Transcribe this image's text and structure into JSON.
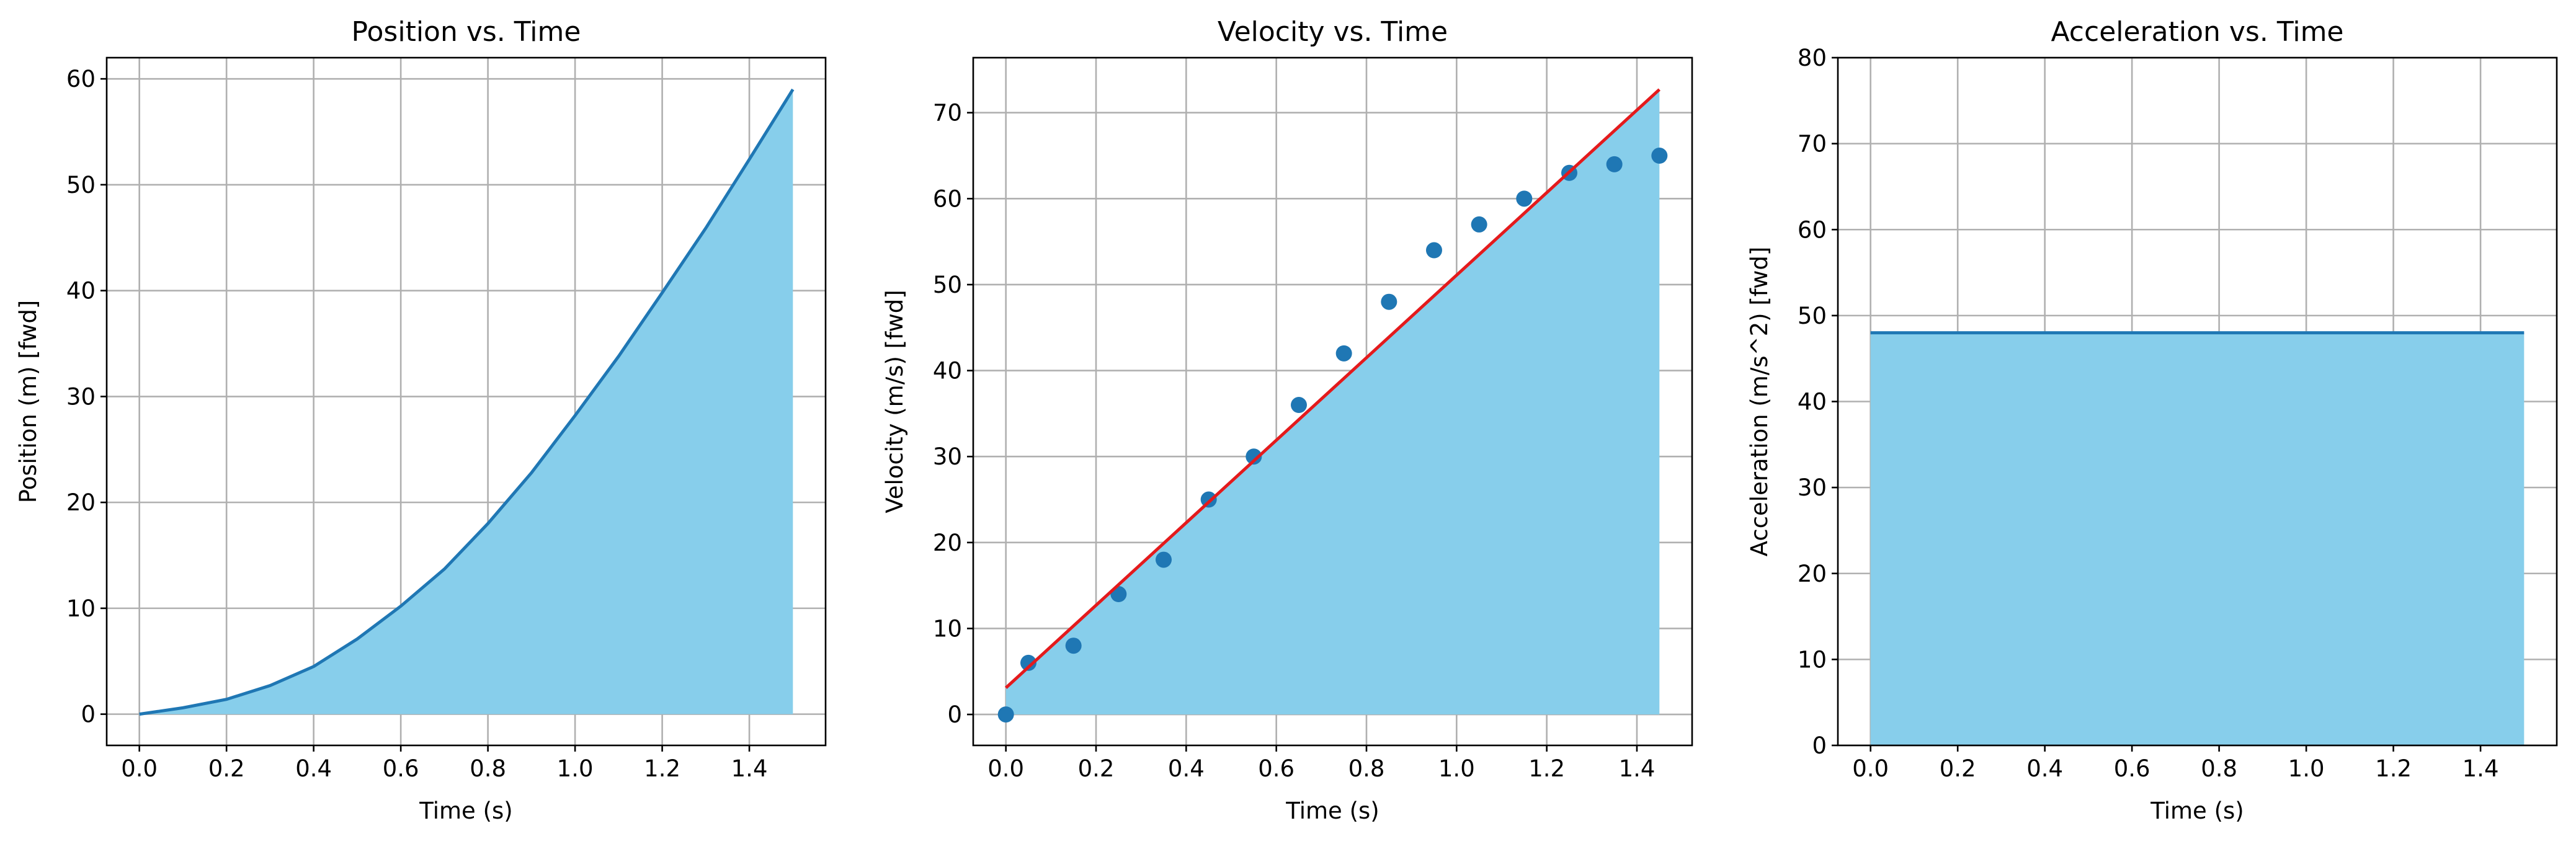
{
  "colors": {
    "line": "#1f77b4",
    "fill": "#87ceeb",
    "fit": "#e41a1c",
    "grid": "#b0b0b0"
  },
  "chart_data": [
    {
      "type": "area",
      "title": "Position vs. Time",
      "xlabel": "Time (s)",
      "ylabel": "Position (m) [fwd]",
      "xlim": [
        -0.075,
        1.575
      ],
      "ylim": [
        -2.95,
        62.0
      ],
      "xticks": [
        0.0,
        0.2,
        0.4,
        0.6,
        0.8,
        1.0,
        1.2,
        1.4
      ],
      "xtick_labels": [
        "0.0",
        "0.2",
        "0.4",
        "0.6",
        "0.8",
        "1.0",
        "1.2",
        "1.4"
      ],
      "yticks": [
        0,
        10,
        20,
        30,
        40,
        50,
        60
      ],
      "ytick_labels": [
        "0",
        "10",
        "20",
        "30",
        "40",
        "50",
        "60"
      ],
      "grid": true,
      "series": [
        {
          "style": "line-fill",
          "x": [
            0.0,
            0.1,
            0.2,
            0.3,
            0.4,
            0.5,
            0.6,
            0.7,
            0.8,
            0.9,
            1.0,
            1.1,
            1.2,
            1.3,
            1.4,
            1.5
          ],
          "y": [
            0.0,
            0.6,
            1.4,
            2.7,
            4.5,
            7.1,
            10.2,
            13.7,
            18.0,
            22.8,
            28.2,
            33.8,
            39.8,
            45.9,
            52.4,
            59.0
          ]
        }
      ]
    },
    {
      "type": "scatter",
      "title": "Velocity vs. Time",
      "xlabel": "Time (s)",
      "ylabel": "Velocity (m/s) [fwd]",
      "xlim": [
        -0.0725,
        1.5225
      ],
      "ylim": [
        -3.6,
        76.4
      ],
      "xticks": [
        0.0,
        0.2,
        0.4,
        0.6,
        0.8,
        1.0,
        1.2,
        1.4
      ],
      "xtick_labels": [
        "0.0",
        "0.2",
        "0.4",
        "0.6",
        "0.8",
        "1.0",
        "1.2",
        "1.4"
      ],
      "yticks": [
        0,
        10,
        20,
        30,
        40,
        50,
        60,
        70
      ],
      "ytick_labels": [
        "0",
        "10",
        "20",
        "30",
        "40",
        "50",
        "60",
        "70"
      ],
      "grid": true,
      "series": [
        {
          "style": "fill",
          "x": [
            0.0,
            1.45
          ],
          "y": [
            3.1,
            72.7
          ]
        },
        {
          "style": "points",
          "x": [
            0.0,
            0.05,
            0.15,
            0.25,
            0.35,
            0.45,
            0.55,
            0.65,
            0.75,
            0.85,
            0.95,
            1.05,
            1.15,
            1.25,
            1.35,
            1.45
          ],
          "y": [
            0,
            6,
            8,
            14,
            18,
            25,
            30,
            36,
            42,
            48,
            54,
            57,
            60,
            63,
            64,
            65
          ]
        },
        {
          "style": "fit-line",
          "x": [
            0.0,
            1.45
          ],
          "y": [
            3.1,
            72.7
          ]
        }
      ]
    },
    {
      "type": "area",
      "title": "Acceleration vs. Time",
      "xlabel": "Time (s)",
      "ylabel": "Acceleration (m/s^2) [fwd]",
      "xlim": [
        -0.075,
        1.575
      ],
      "ylim": [
        0,
        80
      ],
      "xticks": [
        0.0,
        0.2,
        0.4,
        0.6,
        0.8,
        1.0,
        1.2,
        1.4
      ],
      "xtick_labels": [
        "0.0",
        "0.2",
        "0.4",
        "0.6",
        "0.8",
        "1.0",
        "1.2",
        "1.4"
      ],
      "yticks": [
        0,
        10,
        20,
        30,
        40,
        50,
        60,
        70,
        80
      ],
      "ytick_labels": [
        "0",
        "10",
        "20",
        "30",
        "40",
        "50",
        "60",
        "70",
        "80"
      ],
      "grid": true,
      "series": [
        {
          "style": "line-fill",
          "x": [
            0.0,
            1.5
          ],
          "y": [
            48,
            48
          ]
        }
      ]
    }
  ]
}
